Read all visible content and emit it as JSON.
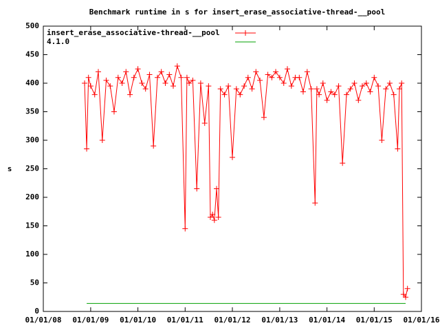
{
  "chart_data": {
    "type": "line",
    "title": "Benchmark runtime in s for insert_erase_associative-thread-__pool",
    "y_label": "s",
    "ylim": [
      0,
      500
    ],
    "yticks": [
      0,
      50,
      100,
      150,
      200,
      250,
      300,
      350,
      400,
      450,
      500
    ],
    "xlim": [
      "01/01/08",
      "01/01/16"
    ],
    "xticks": [
      "01/01/08",
      "01/01/09",
      "01/01/10",
      "01/01/11",
      "01/01/12",
      "01/01/13",
      "01/01/14",
      "01/01/15",
      "01/01/16"
    ],
    "legend": "top-left",
    "series": [
      {
        "name": "insert_erase_associative-thread-__pool",
        "color": "#ff0000",
        "markers": true,
        "x": [
          "11/15/08",
          "12/01/08",
          "12/15/08",
          "01/01/09",
          "02/01/09",
          "03/01/09",
          "04/01/09",
          "05/01/09",
          "06/01/09",
          "07/01/09",
          "08/01/09",
          "09/01/09",
          "10/01/09",
          "11/01/09",
          "12/01/09",
          "01/01/10",
          "02/01/10",
          "03/01/10",
          "04/01/10",
          "05/01/10",
          "06/01/10",
          "07/01/10",
          "08/01/10",
          "09/01/10",
          "10/01/10",
          "11/01/10",
          "12/01/10",
          "01/01/11",
          "01/15/11",
          "02/01/11",
          "03/01/11",
          "04/01/11",
          "05/01/11",
          "06/01/11",
          "07/01/11",
          "07/15/11",
          "08/01/11",
          "08/15/11",
          "09/01/11",
          "09/15/11",
          "10/01/11",
          "11/01/11",
          "12/01/11",
          "01/01/12",
          "02/01/12",
          "03/01/12",
          "04/01/12",
          "05/01/12",
          "06/01/12",
          "07/01/12",
          "08/01/12",
          "09/01/12",
          "10/01/12",
          "11/01/12",
          "12/01/12",
          "01/01/13",
          "02/01/13",
          "03/01/13",
          "04/01/13",
          "05/01/13",
          "06/01/13",
          "07/01/13",
          "08/01/13",
          "09/01/13",
          "10/01/13",
          "10/15/13",
          "11/01/13",
          "12/01/13",
          "01/01/14",
          "02/01/14",
          "03/01/14",
          "04/01/14",
          "05/01/14",
          "06/01/14",
          "07/01/14",
          "08/01/14",
          "09/01/14",
          "10/01/14",
          "11/01/14",
          "12/01/14",
          "01/01/15",
          "02/01/15",
          "03/01/15",
          "04/01/15",
          "05/01/15",
          "06/01/15",
          "07/01/15",
          "07/15/15",
          "08/01/15",
          "08/15/15",
          "09/01/15",
          "09/15/15"
        ],
        "values": [
          400,
          285,
          410,
          395,
          380,
          420,
          300,
          405,
          395,
          350,
          410,
          400,
          420,
          380,
          410,
          425,
          400,
          390,
          415,
          290,
          410,
          420,
          400,
          415,
          395,
          430,
          410,
          145,
          410,
          400,
          405,
          215,
          400,
          330,
          395,
          165,
          170,
          160,
          215,
          165,
          390,
          380,
          395,
          270,
          390,
          380,
          395,
          410,
          390,
          420,
          405,
          340,
          415,
          410,
          420,
          410,
          400,
          425,
          395,
          410,
          410,
          385,
          420,
          390,
          190,
          390,
          380,
          400,
          370,
          385,
          380,
          395,
          260,
          380,
          390,
          400,
          370,
          395,
          400,
          385,
          410,
          395,
          300,
          390,
          400,
          380,
          285,
          390,
          400,
          30,
          25,
          40
        ]
      },
      {
        "name": "4.1.0",
        "color": "#00a000",
        "markers": false,
        "x": [
          "12/01/08",
          "09/01/15"
        ],
        "values": [
          14,
          14
        ]
      }
    ]
  }
}
